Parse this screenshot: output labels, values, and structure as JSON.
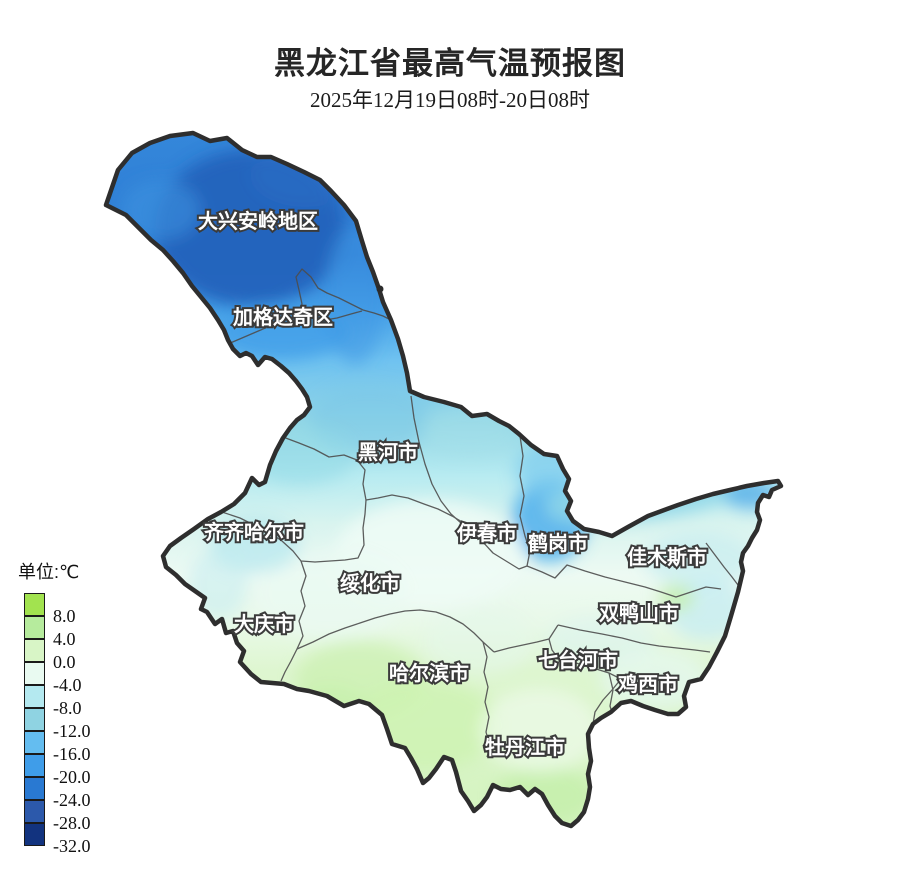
{
  "title": "黑龙江省最高气温预报图",
  "subtitle": "2025年12月19日08时-20日08时",
  "legend": {
    "unit_label": "单位:℃",
    "ticks": [
      "8.0",
      "4.0",
      "0.0",
      "-4.0",
      "-8.0",
      "-12.0",
      "-16.0",
      "-20.0",
      "-24.0",
      "-28.0",
      "-32.0"
    ],
    "colors": [
      "#a2e34f",
      "#b6eb9d",
      "#d8f5c6",
      "#e9faf1",
      "#b4e9f0",
      "#8fd3e2",
      "#64bdf0",
      "#3f9de9",
      "#2979d2",
      "#2c59ab",
      "#12337f"
    ]
  },
  "map": {
    "regions": [
      "大兴安岭地区",
      "加格达奇区",
      "黑河市",
      "齐齐哈尔市",
      "伊春市",
      "鹤岗市",
      "佳木斯市",
      "绥化市",
      "双鸭山市",
      "大庆市",
      "七台河市",
      "鸡西市",
      "哈尔滨市",
      "牡丹江市"
    ]
  }
}
